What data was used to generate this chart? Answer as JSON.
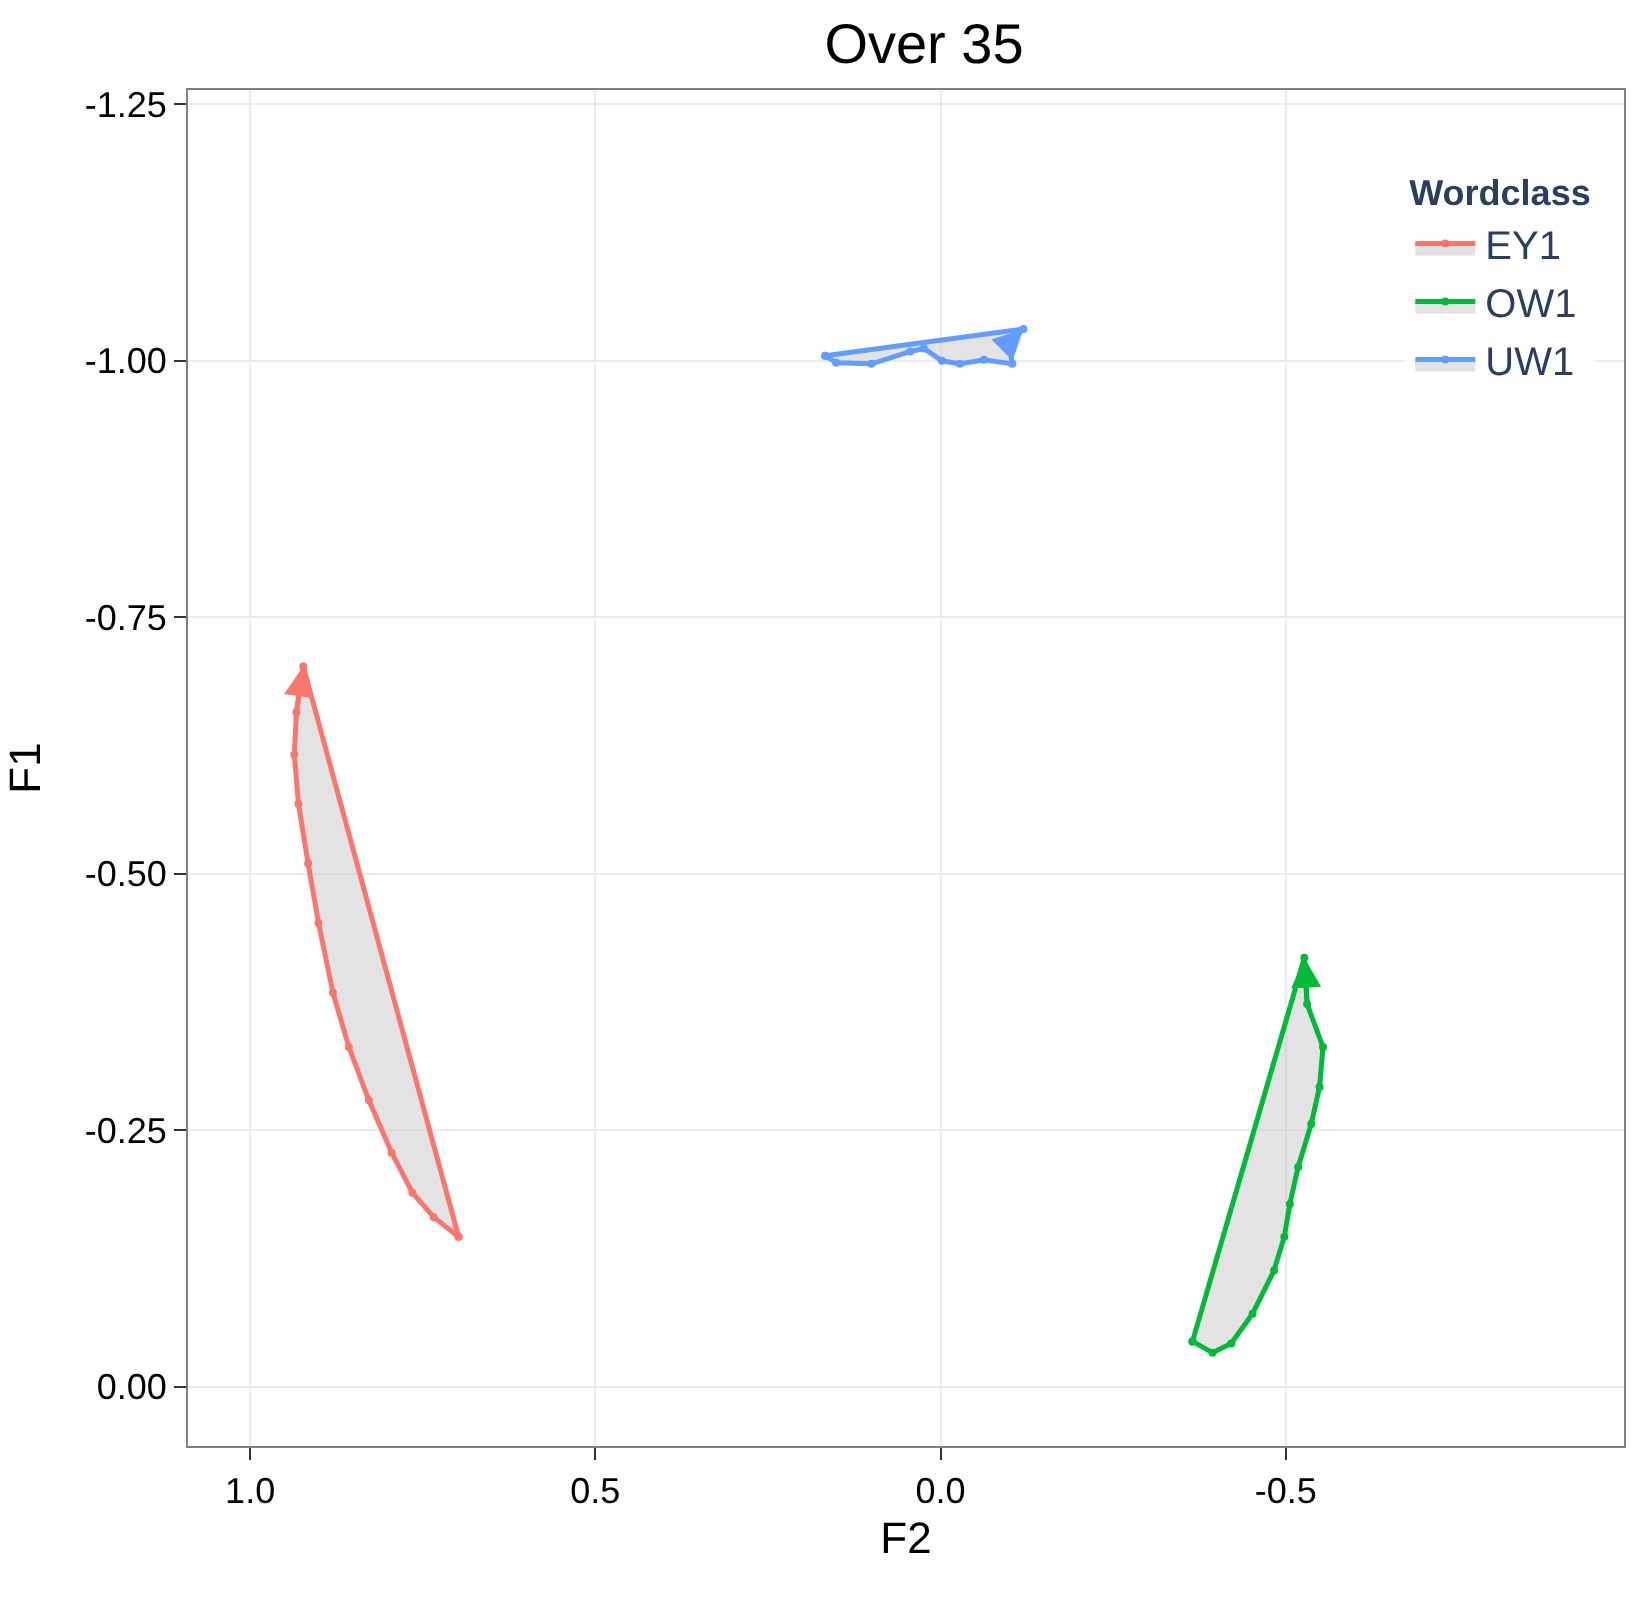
{
  "chart_data": {
    "type": "area",
    "title": "Over 35",
    "xlabel": "F2",
    "ylabel": "F1",
    "legend_title": "Wordclass",
    "xlim": [
      1.09,
      -0.99
    ],
    "ylim": [
      0.058,
      -1.264
    ],
    "xticks": [
      {
        "value": 1.0,
        "label": "1.0"
      },
      {
        "value": 0.5,
        "label": "0.5"
      },
      {
        "value": 0.0,
        "label": "0.0"
      },
      {
        "value": -0.5,
        "label": "-0.5"
      }
    ],
    "yticks": [
      {
        "value": -1.25,
        "label": "-1.25"
      },
      {
        "value": -1.0,
        "label": "-1.00"
      },
      {
        "value": -0.75,
        "label": "-0.75"
      },
      {
        "value": -0.5,
        "label": "-0.50"
      },
      {
        "value": -0.25,
        "label": "-0.25"
      },
      {
        "value": 0.0,
        "label": "0.00"
      }
    ],
    "grid": true,
    "legend": "top right",
    "marker": "circle",
    "series": [
      {
        "name": "EY1",
        "color": "#f8766d",
        "x": [
          0.698,
          0.734,
          0.765,
          0.795,
          0.828,
          0.857,
          0.88,
          0.901,
          0.916,
          0.93,
          0.936,
          0.933,
          0.923
        ],
        "values": [
          -0.146,
          -0.165,
          -0.189,
          -0.228,
          -0.279,
          -0.331,
          -0.384,
          -0.452,
          -0.51,
          -0.568,
          -0.616,
          -0.657,
          -0.702
        ]
      },
      {
        "name": "OW1",
        "color": "#00ba38",
        "x": [
          -0.365,
          -0.394,
          -0.421,
          -0.452,
          -0.483,
          -0.498,
          -0.506,
          -0.518,
          -0.537,
          -0.549,
          -0.554,
          -0.531,
          -0.527
        ],
        "values": [
          -0.044,
          -0.033,
          -0.042,
          -0.071,
          -0.113,
          -0.146,
          -0.178,
          -0.214,
          -0.256,
          -0.292,
          -0.331,
          -0.373,
          -0.418
        ]
      },
      {
        "name": "UW1",
        "color": "#619cff",
        "x": [
          0.167,
          0.151,
          0.1,
          0.044,
          0.024,
          -0.002,
          -0.028,
          -0.063,
          -0.104,
          -0.099,
          -0.12
        ],
        "values": [
          -1.005,
          -0.998,
          -0.997,
          -1.009,
          -1.012,
          -1.0,
          -0.997,
          -1.001,
          -0.997,
          -1.017,
          -1.031
        ]
      }
    ]
  }
}
